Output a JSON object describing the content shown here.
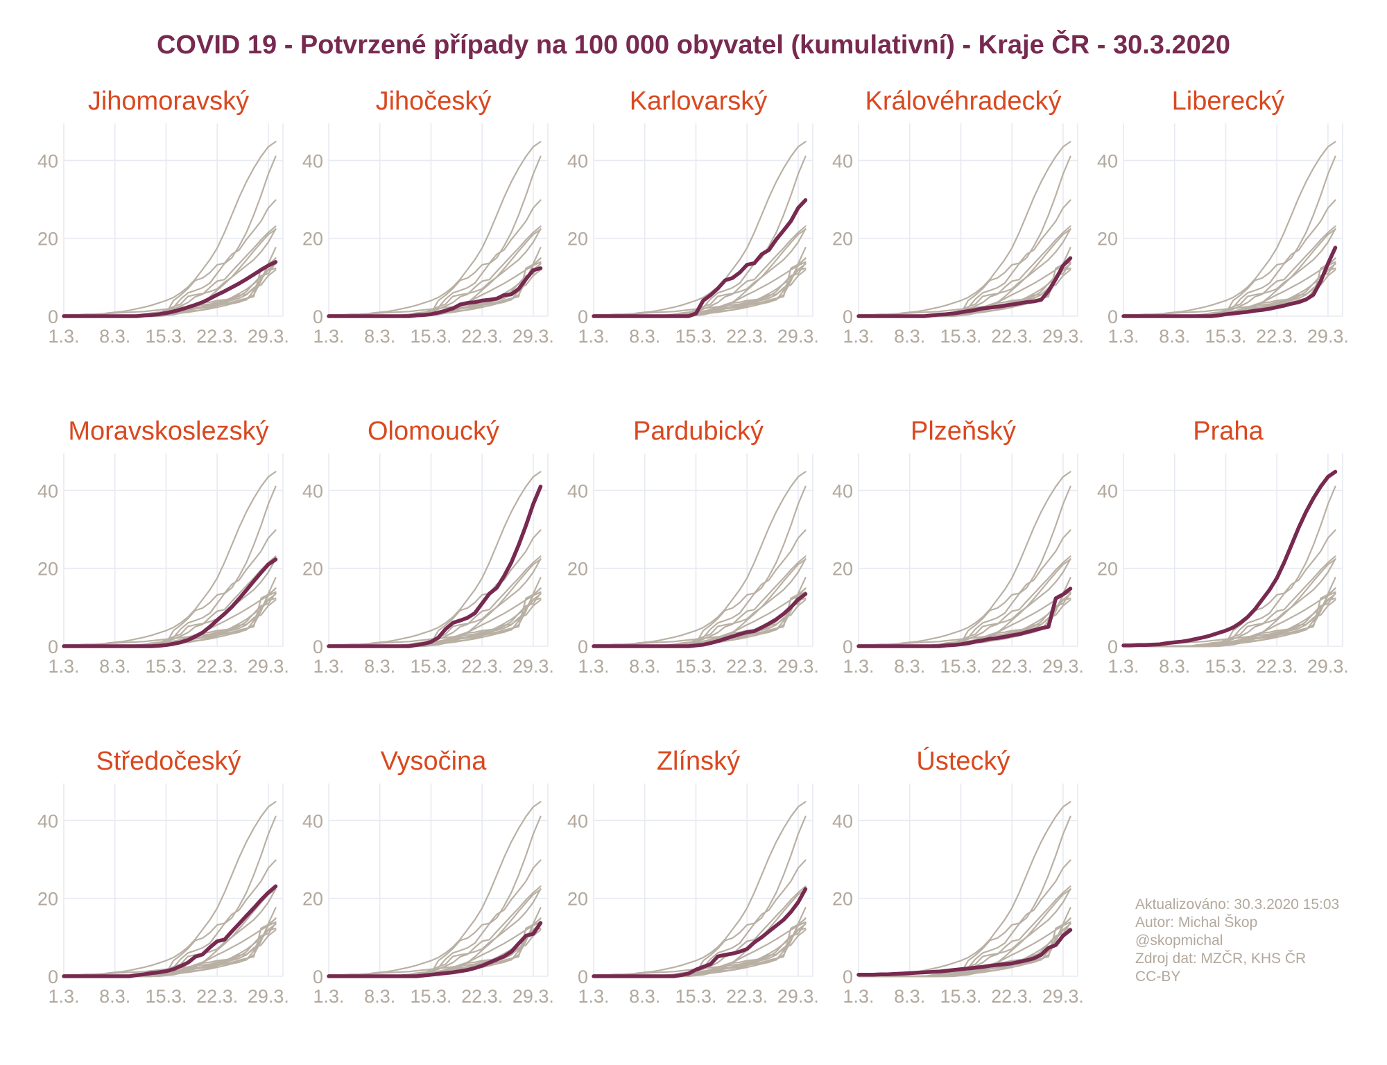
{
  "title": "COVID 19 - Potvrzené případy na 100 000 obyvatel (kumulativní) - Kraje ČR - 30.3.2020",
  "colors": {
    "title": "#772950",
    "highlight": "#772950",
    "series": "#b9b0a4",
    "subplot_title": "#d9481f",
    "axis_text": "#b2a89d",
    "gridline": "#e7eaf1",
    "background": "#ffffff"
  },
  "footer": {
    "lines": [
      "Aktualizováno: 30.3.2020 15:03",
      "Autor: Michal Škop",
      "@skopmichal",
      "Zdroj dat: MZČR, KHS ČR",
      "CC-BY"
    ]
  },
  "chart_data": {
    "type": "line",
    "small_multiples": true,
    "title": "COVID 19 - Potvrzené případy na 100 000 obyvatel (kumulativní) - Kraje ČR - 30.3.2020",
    "xlabel": "",
    "ylabel": "",
    "x": [
      1,
      2,
      3,
      4,
      5,
      6,
      7,
      8,
      9,
      10,
      11,
      12,
      13,
      14,
      15,
      16,
      17,
      18,
      19,
      20,
      21,
      22,
      23,
      24,
      25,
      26,
      27,
      28,
      29,
      30
    ],
    "x_unit": "den v březnu 2020",
    "x_domain": [
      1,
      31
    ],
    "x_tick_days": [
      1,
      8,
      15,
      22,
      29
    ],
    "x_tick_labels": [
      "1.3.",
      "8.3.",
      "15.3.",
      "22.3.",
      "29.3."
    ],
    "y_ticks": [
      0,
      20,
      40
    ],
    "y_tick_labels": [
      "0",
      "20",
      "40"
    ],
    "ylim": [
      0,
      49.5
    ],
    "grid": true,
    "legend": false,
    "subplot_order": [
      "Jihomoravský",
      "Jihočeský",
      "Karlovarský",
      "Královéhradecký",
      "Liberecký",
      "Moravskoslezský",
      "Olomoucký",
      "Pardubický",
      "Plzeňský",
      "Praha",
      "Středočeský",
      "Vysočina",
      "Zlínský",
      "Ústecký"
    ],
    "series": [
      {
        "name": "Jihomoravský",
        "values": [
          0,
          0,
          0,
          0,
          0,
          0,
          0,
          0,
          0,
          0,
          0,
          0.2,
          0.3,
          0.5,
          0.8,
          1.2,
          1.7,
          2.3,
          2.9,
          3.6,
          4.5,
          5.5,
          6.4,
          7.4,
          8.4,
          9.5,
          10.7,
          11.9,
          13,
          13.9
        ]
      },
      {
        "name": "Jihočeský",
        "values": [
          0,
          0,
          0,
          0,
          0,
          0,
          0,
          0,
          0,
          0,
          0,
          0,
          0.2,
          0.3,
          0.5,
          0.9,
          1.4,
          2,
          3,
          3.4,
          3.6,
          4,
          4.2,
          4.5,
          5.4,
          5.6,
          7,
          9.5,
          11.8,
          12.3
        ]
      },
      {
        "name": "Karlovarský",
        "values": [
          0,
          0,
          0,
          0,
          0,
          0,
          0,
          0,
          0,
          0,
          0,
          0,
          0,
          0,
          0.7,
          4,
          5.4,
          7.1,
          9.2,
          9.8,
          11.2,
          13.2,
          13.6,
          15.9,
          17,
          19.7,
          22,
          24.4,
          27.8,
          29.8
        ]
      },
      {
        "name": "Královéhradecký",
        "values": [
          0,
          0,
          0,
          0,
          0,
          0,
          0,
          0,
          0,
          0,
          0.2,
          0.4,
          0.5,
          0.7,
          1,
          1.3,
          1.6,
          2,
          2.2,
          2.4,
          2.7,
          3,
          3.3,
          3.6,
          3.8,
          4.2,
          6.5,
          9.5,
          13,
          14.9
        ]
      },
      {
        "name": "Liberecký",
        "values": [
          0,
          0,
          0,
          0,
          0,
          0,
          0,
          0,
          0,
          0,
          0,
          0,
          0,
          0.2,
          0.5,
          0.7,
          0.9,
          1.1,
          1.4,
          1.6,
          1.9,
          2.3,
          2.7,
          3.2,
          3.6,
          4.3,
          5.5,
          9,
          13.5,
          17.6
        ]
      },
      {
        "name": "Moravskoslezský",
        "values": [
          0,
          0,
          0,
          0,
          0,
          0,
          0,
          0,
          0,
          0,
          0,
          0,
          0,
          0.1,
          0.3,
          0.6,
          1,
          1.6,
          2.5,
          3.5,
          5,
          6.7,
          8.3,
          10.1,
          12.2,
          14.4,
          16.7,
          18.9,
          21,
          22.3
        ]
      },
      {
        "name": "Olomoucký",
        "values": [
          0,
          0,
          0,
          0,
          0,
          0,
          0,
          0,
          0,
          0,
          0,
          0,
          0.3,
          0.6,
          1.1,
          2.2,
          4.4,
          6,
          6.6,
          7.3,
          8.5,
          11,
          13.5,
          15,
          18,
          21.5,
          26,
          31,
          36.5,
          41
        ]
      },
      {
        "name": "Pardubický",
        "values": [
          0,
          0,
          0,
          0,
          0,
          0,
          0,
          0,
          0,
          0,
          0,
          0,
          0,
          0,
          0.2,
          0.4,
          0.8,
          1.3,
          1.9,
          2.5,
          3.1,
          3.6,
          3.9,
          4.8,
          5.8,
          6.9,
          8.3,
          10,
          12,
          13.4
        ]
      },
      {
        "name": "Plzeňský",
        "values": [
          0,
          0,
          0,
          0,
          0,
          0,
          0,
          0,
          0,
          0,
          0,
          0,
          0.2,
          0.3,
          0.5,
          0.8,
          1.2,
          1.5,
          1.9,
          2.1,
          2.4,
          2.8,
          3.1,
          3.6,
          4.1,
          4.6,
          5,
          12.3,
          13.3,
          14.8
        ]
      },
      {
        "name": "Praha",
        "values": [
          0.2,
          0.2,
          0.3,
          0.3,
          0.4,
          0.5,
          0.8,
          1,
          1.2,
          1.5,
          1.9,
          2.3,
          2.8,
          3.4,
          4,
          4.8,
          6,
          7.5,
          9.5,
          12,
          14.5,
          17.5,
          21.5,
          26,
          30.5,
          34.5,
          38,
          41,
          43.5,
          44.8
        ]
      },
      {
        "name": "Středočeský",
        "values": [
          0,
          0,
          0,
          0,
          0,
          0,
          0,
          0,
          0,
          0,
          0.3,
          0.5,
          0.8,
          1,
          1.3,
          1.8,
          2.6,
          3.5,
          5,
          5.6,
          7.4,
          9,
          9.4,
          11.5,
          13.5,
          15.5,
          17.5,
          19.6,
          21.5,
          23.1
        ]
      },
      {
        "name": "Vysočina",
        "values": [
          0,
          0,
          0,
          0,
          0,
          0,
          0,
          0,
          0,
          0,
          0,
          0,
          0,
          0.2,
          0.4,
          0.6,
          0.8,
          1,
          1.3,
          1.6,
          2.1,
          2.7,
          3.5,
          4.3,
          5.1,
          6.3,
          8.4,
          10.4,
          10.9,
          13.7
        ]
      },
      {
        "name": "Zlínský",
        "values": [
          0,
          0,
          0,
          0,
          0,
          0,
          0,
          0,
          0,
          0,
          0,
          0,
          0.3,
          0.7,
          1.7,
          2.4,
          3.1,
          5.1,
          5.5,
          5.8,
          6.3,
          7,
          8.7,
          10,
          11.5,
          13,
          14.5,
          16.5,
          19,
          22.4
        ]
      },
      {
        "name": "Ústecký",
        "values": [
          0.4,
          0.4,
          0.4,
          0.5,
          0.5,
          0.6,
          0.7,
          0.8,
          0.9,
          1,
          1.1,
          1.2,
          1.4,
          1.6,
          1.8,
          2,
          2.2,
          2.4,
          2.7,
          2.9,
          3.1,
          3.3,
          3.7,
          4.1,
          4.6,
          5.5,
          7.3,
          8,
          10.4,
          11.9
        ]
      }
    ]
  }
}
